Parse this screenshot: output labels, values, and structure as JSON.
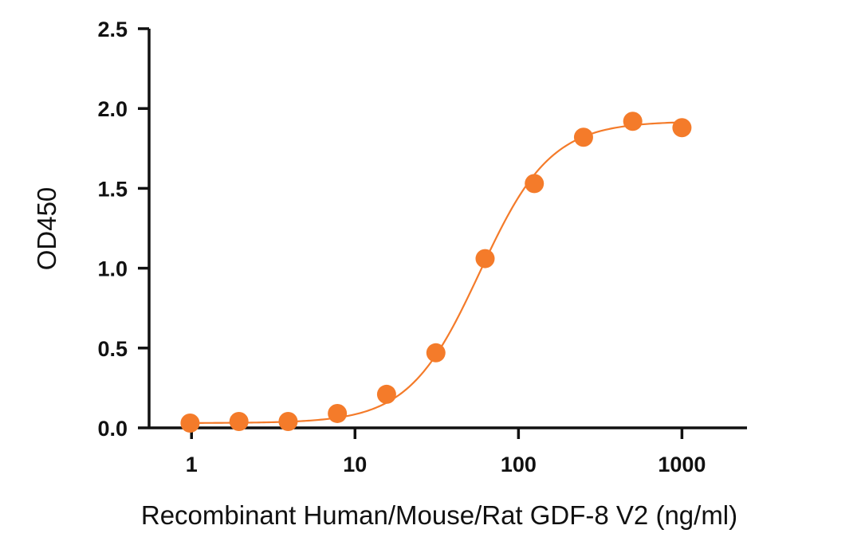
{
  "chart_data": {
    "type": "scatter",
    "title": "",
    "xlabel": "Recombinant Human/Mouse/Rat GDF-8 V2 (ng/ml)",
    "ylabel": "OD450",
    "xscale": "log10",
    "xlim": [
      0.55,
      2500
    ],
    "ylim": [
      0,
      2.5
    ],
    "x_ticks": [
      1,
      10,
      100,
      1000
    ],
    "x_tick_labels": [
      "1",
      "10",
      "100",
      "1000"
    ],
    "y_ticks": [
      0,
      0.5,
      1,
      1.5,
      2,
      2.5
    ],
    "y_tick_labels": [
      "0.0",
      "0.5",
      "1.0",
      "1.5",
      "2.0",
      "2.5"
    ],
    "series": [
      {
        "name": "GDF-8 V2",
        "color": "#F47B2A",
        "x": [
          0.98,
          1.95,
          3.9,
          7.8,
          15.6,
          31.25,
          62.5,
          125,
          250,
          500,
          1000
        ],
        "y": [
          0.03,
          0.04,
          0.04,
          0.09,
          0.21,
          0.47,
          1.06,
          1.53,
          1.82,
          1.92,
          1.88
        ],
        "fit": {
          "model": "4PL",
          "bottom": 0.03,
          "top": 1.92,
          "ec50": 58,
          "hill": 2.0
        }
      }
    ],
    "grid": false,
    "legend": "none"
  }
}
